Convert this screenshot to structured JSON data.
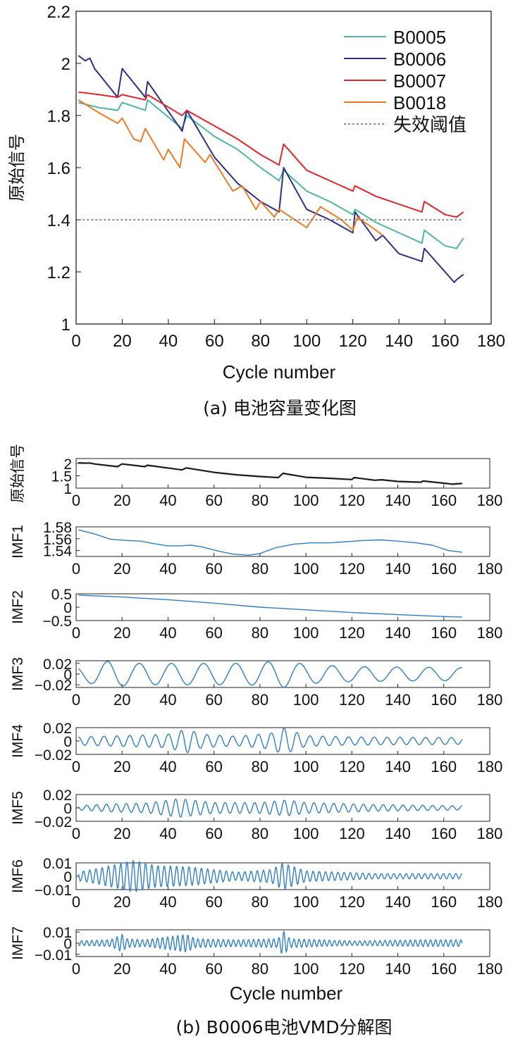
{
  "colors": {
    "B0005": "#4db8a0",
    "B0006": "#2e2f86",
    "B0007": "#e0262b",
    "B0018": "#ef7a25",
    "threshold": "#666666",
    "vmd_signal": "#1a1a1a",
    "vmd_imf": "#2f7fc6"
  },
  "panel_a": {
    "caption": "(a) 电池容量变化图",
    "xlabel": "Cycle number",
    "ylabel": "原始信号",
    "xlim": [
      0,
      180
    ],
    "ylim": [
      1,
      2.2
    ],
    "xticks": [
      "0",
      "20",
      "40",
      "60",
      "80",
      "100",
      "120",
      "140",
      "160",
      "180"
    ],
    "yticks": [
      "1",
      "1.2",
      "1.4",
      "1.6",
      "1.8",
      "2",
      "2.2"
    ]
  },
  "panel_b": {
    "caption": "(b) B0006电池VMD分解图",
    "xlabel": "Cycle number",
    "xticks": [
      "0",
      "20",
      "40",
      "60",
      "80",
      "100",
      "120",
      "140",
      "160",
      "180"
    ]
  },
  "chart_data": [
    {
      "type": "line",
      "title": "(a) 电池容量变化图",
      "xlabel": "Cycle number",
      "ylabel": "原始信号",
      "xlim": [
        0,
        180
      ],
      "ylim": [
        1,
        2.2
      ],
      "legend_position": "top-right",
      "series": [
        {
          "name": "B0005",
          "color_key": "B0005",
          "dashed": false,
          "points": [
            [
              1,
              1.85
            ],
            [
              10,
              1.83
            ],
            [
              18,
              1.82
            ],
            [
              20,
              1.85
            ],
            [
              30,
              1.82
            ],
            [
              31,
              1.86
            ],
            [
              46,
              1.75
            ],
            [
              48,
              1.8
            ],
            [
              60,
              1.72
            ],
            [
              70,
              1.67
            ],
            [
              80,
              1.6
            ],
            [
              88,
              1.55
            ],
            [
              90,
              1.59
            ],
            [
              100,
              1.51
            ],
            [
              110,
              1.47
            ],
            [
              120,
              1.42
            ],
            [
              121,
              1.44
            ],
            [
              130,
              1.39
            ],
            [
              140,
              1.35
            ],
            [
              150,
              1.31
            ],
            [
              151,
              1.36
            ],
            [
              160,
              1.3
            ],
            [
              165,
              1.29
            ],
            [
              168,
              1.33
            ]
          ]
        },
        {
          "name": "B0006",
          "color_key": "B0006",
          "dashed": false,
          "points": [
            [
              1,
              2.03
            ],
            [
              4,
              2.01
            ],
            [
              6,
              2.02
            ],
            [
              8,
              1.98
            ],
            [
              18,
              1.87
            ],
            [
              20,
              1.98
            ],
            [
              30,
              1.87
            ],
            [
              31,
              1.93
            ],
            [
              46,
              1.74
            ],
            [
              48,
              1.82
            ],
            [
              60,
              1.64
            ],
            [
              70,
              1.54
            ],
            [
              80,
              1.47
            ],
            [
              88,
              1.43
            ],
            [
              90,
              1.6
            ],
            [
              100,
              1.44
            ],
            [
              110,
              1.4
            ],
            [
              120,
              1.35
            ],
            [
              121,
              1.43
            ],
            [
              130,
              1.32
            ],
            [
              133,
              1.34
            ],
            [
              140,
              1.27
            ],
            [
              150,
              1.24
            ],
            [
              151,
              1.29
            ],
            [
              160,
              1.2
            ],
            [
              164,
              1.16
            ],
            [
              165,
              1.17
            ],
            [
              168,
              1.19
            ]
          ]
        },
        {
          "name": "B0007",
          "color_key": "B0007",
          "dashed": false,
          "points": [
            [
              1,
              1.89
            ],
            [
              10,
              1.88
            ],
            [
              18,
              1.87
            ],
            [
              20,
              1.88
            ],
            [
              30,
              1.86
            ],
            [
              31,
              1.88
            ],
            [
              46,
              1.8
            ],
            [
              48,
              1.82
            ],
            [
              60,
              1.76
            ],
            [
              70,
              1.71
            ],
            [
              80,
              1.65
            ],
            [
              88,
              1.61
            ],
            [
              90,
              1.69
            ],
            [
              100,
              1.59
            ],
            [
              110,
              1.55
            ],
            [
              120,
              1.51
            ],
            [
              121,
              1.53
            ],
            [
              130,
              1.49
            ],
            [
              140,
              1.46
            ],
            [
              150,
              1.43
            ],
            [
              151,
              1.47
            ],
            [
              160,
              1.42
            ],
            [
              165,
              1.41
            ],
            [
              168,
              1.43
            ]
          ]
        },
        {
          "name": "B0018",
          "color_key": "B0018",
          "dashed": false,
          "points": [
            [
              1,
              1.86
            ],
            [
              10,
              1.81
            ],
            [
              18,
              1.77
            ],
            [
              20,
              1.79
            ],
            [
              25,
              1.71
            ],
            [
              28,
              1.7
            ],
            [
              30,
              1.75
            ],
            [
              38,
              1.63
            ],
            [
              40,
              1.67
            ],
            [
              45,
              1.6
            ],
            [
              47,
              1.71
            ],
            [
              56,
              1.62
            ],
            [
              58,
              1.65
            ],
            [
              68,
              1.51
            ],
            [
              72,
              1.53
            ],
            [
              78,
              1.44
            ],
            [
              80,
              1.47
            ],
            [
              86,
              1.41
            ],
            [
              88,
              1.44
            ],
            [
              100,
              1.37
            ],
            [
              106,
              1.45
            ],
            [
              115,
              1.4
            ],
            [
              120,
              1.36
            ],
            [
              122,
              1.41
            ],
            [
              130,
              1.36
            ],
            [
              133,
              1.34
            ]
          ]
        },
        {
          "name": "失效阈值",
          "color_key": "threshold",
          "dashed": true,
          "points": [
            [
              1,
              1.4
            ],
            [
              168,
              1.4
            ]
          ]
        }
      ]
    },
    {
      "type": "line",
      "title": "(b) B0006电池VMD分解图",
      "xlabel": "Cycle number",
      "xlim": [
        0,
        180
      ],
      "subplots": [
        {
          "name": "原始信号",
          "kind": "signal",
          "ylim": [
            1,
            2.2
          ],
          "yticks": [
            2,
            1.5,
            1
          ],
          "ytick_labels": [
            "2",
            "1.5",
            "1"
          ],
          "color_key": "vmd_signal"
        },
        {
          "name": "IMF1",
          "kind": "points",
          "ylim": [
            1.53,
            1.58
          ],
          "yticks": [
            1.58,
            1.56,
            1.54
          ],
          "ytick_labels": [
            "1.58",
            "1.56",
            "1.54"
          ],
          "color_key": "vmd_imf",
          "points": [
            [
              1,
              1.575
            ],
            [
              8,
              1.568
            ],
            [
              15,
              1.559
            ],
            [
              22,
              1.557
            ],
            [
              28,
              1.556
            ],
            [
              35,
              1.551
            ],
            [
              40,
              1.548
            ],
            [
              45,
              1.548
            ],
            [
              50,
              1.549
            ],
            [
              55,
              1.546
            ],
            [
              62,
              1.539
            ],
            [
              68,
              1.534
            ],
            [
              75,
              1.532
            ],
            [
              80,
              1.535
            ],
            [
              87,
              1.545
            ],
            [
              95,
              1.551
            ],
            [
              102,
              1.553
            ],
            [
              110,
              1.553
            ],
            [
              118,
              1.555
            ],
            [
              125,
              1.557
            ],
            [
              132,
              1.558
            ],
            [
              140,
              1.556
            ],
            [
              148,
              1.553
            ],
            [
              155,
              1.549
            ],
            [
              162,
              1.54
            ],
            [
              168,
              1.537
            ]
          ]
        },
        {
          "name": "IMF2",
          "kind": "points",
          "ylim": [
            -0.5,
            0.5
          ],
          "yticks": [
            0.5,
            0,
            -0.5
          ],
          "ytick_labels": [
            "0.5",
            "0",
            "−0.5"
          ],
          "color_key": "vmd_imf",
          "points": [
            [
              1,
              0.45
            ],
            [
              20,
              0.38
            ],
            [
              40,
              0.28
            ],
            [
              60,
              0.15
            ],
            [
              80,
              0.0
            ],
            [
              100,
              -0.1
            ],
            [
              120,
              -0.2
            ],
            [
              140,
              -0.28
            ],
            [
              160,
              -0.35
            ],
            [
              168,
              -0.37
            ]
          ]
        },
        {
          "name": "IMF3",
          "kind": "sine",
          "ylim": [
            -0.025,
            0.025
          ],
          "yticks": [
            0.02,
            0,
            -0.02
          ],
          "ytick_labels": [
            "0.02",
            "0",
            "−0.02"
          ],
          "color_key": "vmd_imf",
          "period": 14,
          "phase": 1.8,
          "amp_profile": [
            [
              0,
              0.012
            ],
            [
              15,
              0.025
            ],
            [
              25,
              0.02
            ],
            [
              45,
              0.02
            ],
            [
              55,
              0.02
            ],
            [
              75,
              0.02
            ],
            [
              90,
              0.025
            ],
            [
              100,
              0.018
            ],
            [
              120,
              0.014
            ],
            [
              168,
              0.012
            ]
          ]
        },
        {
          "name": "IMF4",
          "kind": "sine",
          "ylim": [
            -0.02,
            0.02
          ],
          "yticks": [
            0.02,
            0,
            -0.02
          ],
          "ytick_labels": [
            "0.02",
            "0",
            "−0.02"
          ],
          "color_key": "vmd_imf",
          "period": 5.6,
          "phase": 0.5,
          "amp_profile": [
            [
              0,
              0.006
            ],
            [
              20,
              0.008
            ],
            [
              40,
              0.01
            ],
            [
              48,
              0.018
            ],
            [
              55,
              0.01
            ],
            [
              70,
              0.007
            ],
            [
              85,
              0.012
            ],
            [
              90,
              0.02
            ],
            [
              100,
              0.008
            ],
            [
              120,
              0.006
            ],
            [
              168,
              0.005
            ]
          ]
        },
        {
          "name": "IMF5",
          "kind": "sine",
          "ylim": [
            -0.02,
            0.02
          ],
          "yticks": [
            0.02,
            0,
            -0.02
          ],
          "ytick_labels": [
            "0.02",
            "0",
            "−0.02"
          ],
          "color_key": "vmd_imf",
          "period": 4.3,
          "phase": 1.1,
          "amp_profile": [
            [
              0,
              0.003
            ],
            [
              15,
              0.006
            ],
            [
              30,
              0.007
            ],
            [
              45,
              0.014
            ],
            [
              50,
              0.012
            ],
            [
              60,
              0.008
            ],
            [
              80,
              0.008
            ],
            [
              92,
              0.012
            ],
            [
              100,
              0.008
            ],
            [
              130,
              0.005
            ],
            [
              168,
              0.003
            ]
          ]
        },
        {
          "name": "IMF6",
          "kind": "sine",
          "ylim": [
            -0.01,
            0.01
          ],
          "yticks": [
            0.01,
            0,
            -0.01
          ],
          "ytick_labels": [
            "0.01",
            "0",
            "−0.01"
          ],
          "color_key": "vmd_imf",
          "period": 2.7,
          "phase": 0.3,
          "amp_profile": [
            [
              0,
              0.003
            ],
            [
              10,
              0.006
            ],
            [
              20,
              0.01
            ],
            [
              25,
              0.012
            ],
            [
              35,
              0.008
            ],
            [
              50,
              0.007
            ],
            [
              70,
              0.003
            ],
            [
              85,
              0.005
            ],
            [
              90,
              0.01
            ],
            [
              100,
              0.004
            ],
            [
              130,
              0.002
            ],
            [
              168,
              0.002
            ]
          ]
        },
        {
          "name": "IMF7",
          "kind": "sine",
          "ylim": [
            -0.012,
            0.012
          ],
          "yticks": [
            0.01,
            0,
            -0.01
          ],
          "ytick_labels": [
            "0.01",
            "0",
            "−0.01"
          ],
          "color_key": "vmd_imf",
          "period": 2.2,
          "phase": 0.9,
          "amp_profile": [
            [
              0,
              0.002
            ],
            [
              15,
              0.003
            ],
            [
              20,
              0.008
            ],
            [
              22,
              0.004
            ],
            [
              30,
              0.003
            ],
            [
              48,
              0.008
            ],
            [
              52,
              0.004
            ],
            [
              70,
              0.003
            ],
            [
              88,
              0.004
            ],
            [
              90,
              0.012
            ],
            [
              93,
              0.004
            ],
            [
              120,
              0.002
            ],
            [
              150,
              0.003
            ],
            [
              168,
              0.003
            ]
          ]
        }
      ]
    }
  ]
}
